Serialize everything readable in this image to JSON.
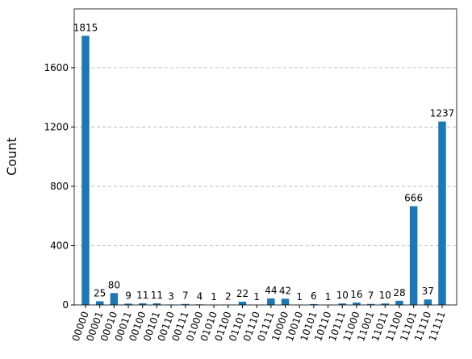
{
  "chart_data": {
    "type": "bar",
    "ylabel": "Count",
    "categories": [
      "00000",
      "00001",
      "00010",
      "00011",
      "00100",
      "00101",
      "00110",
      "00111",
      "01000",
      "01010",
      "01100",
      "01101",
      "01110",
      "01111",
      "10000",
      "10010",
      "10101",
      "10110",
      "10111",
      "11000",
      "11001",
      "11011",
      "11100",
      "11101",
      "11110",
      "11111"
    ],
    "values": [
      1815,
      25,
      80,
      9,
      11,
      11,
      3,
      7,
      4,
      1,
      2,
      22,
      1,
      44,
      42,
      1,
      6,
      1,
      10,
      16,
      7,
      10,
      28,
      666,
      37,
      1237
    ],
    "color": "#1f77b4",
    "ylim": [
      0,
      1996.5
    ],
    "yticks": [
      0,
      400,
      800,
      1200,
      1600
    ],
    "grid": true
  }
}
